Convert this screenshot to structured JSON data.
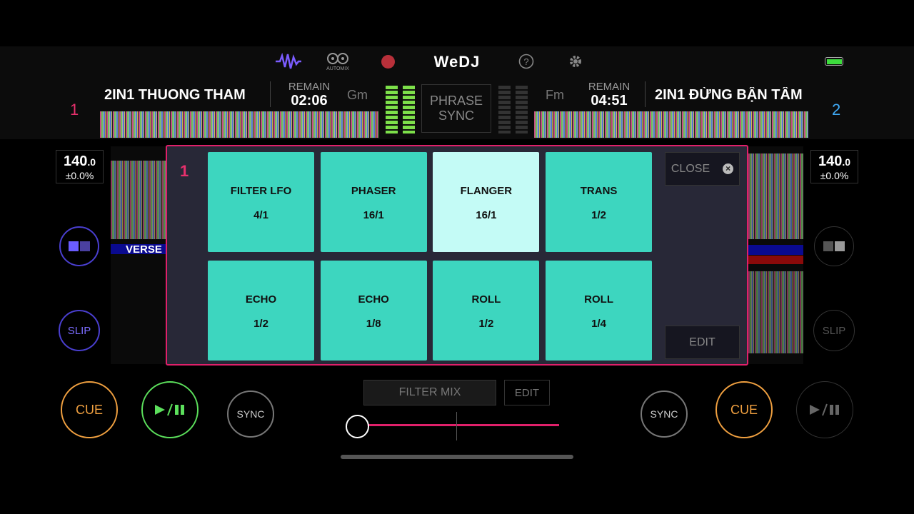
{
  "header": {
    "automix_label": "AUTOMIX",
    "logo": "WeDJ"
  },
  "deck_left": {
    "number": "1",
    "title": "2IN1 THUONG THAM",
    "remain_label": "REMAIN",
    "remain": "02:06",
    "key": "Gm",
    "bpm": "140",
    "bpm_decimal": ".0",
    "pitch": "±0.0%",
    "section": "VERSE",
    "slip": "SLIP",
    "cue": "CUE",
    "sync": "SYNC"
  },
  "phrase_sync": [
    "PHRASE",
    "SYNC"
  ],
  "deck_right": {
    "number": "2",
    "title": "2IN1 ĐỪNG BẬN TÂM",
    "remain_label": "REMAIN",
    "remain": "04:51",
    "key": "Fm",
    "bpm": "140",
    "bpm_decimal": ".0",
    "pitch": "±0.0%",
    "slip": "SLIP",
    "cue": "CUE",
    "sync": "SYNC"
  },
  "fx_panel": {
    "deck": "1",
    "close": "CLOSE",
    "edit": "EDIT",
    "pads": [
      {
        "name": "FILTER LFO",
        "value": "4/1"
      },
      {
        "name": "PHASER",
        "value": "16/1"
      },
      {
        "name": "FLANGER",
        "value": "16/1"
      },
      {
        "name": "TRANS",
        "value": "1/2"
      },
      {
        "name": "ECHO",
        "value": "1/2"
      },
      {
        "name": "ECHO",
        "value": "1/8"
      },
      {
        "name": "ROLL",
        "value": "1/2"
      },
      {
        "name": "ROLL",
        "value": "1/4"
      }
    ]
  },
  "filter_mix": {
    "label": "FILTER MIX",
    "edit": "EDIT"
  }
}
